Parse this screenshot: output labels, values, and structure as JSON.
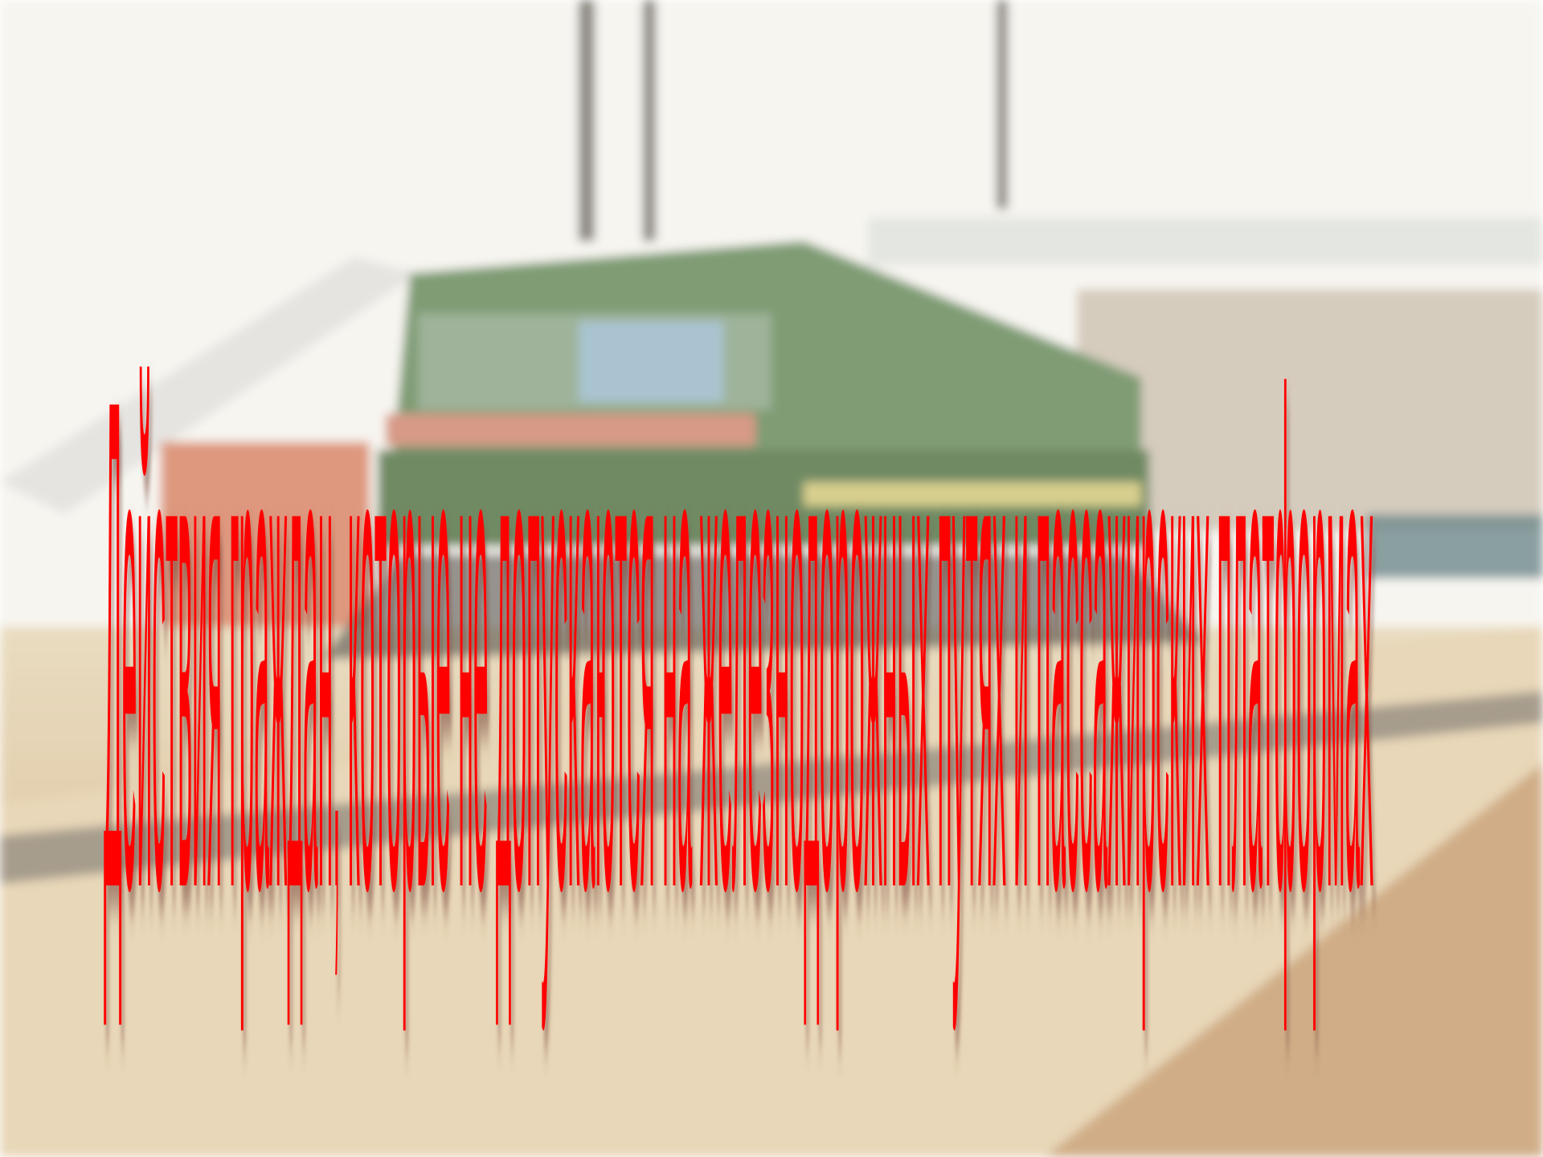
{
  "title": "Действия граждан, которые не допускаются на железнодорожных путях и пассажирских платформах"
}
